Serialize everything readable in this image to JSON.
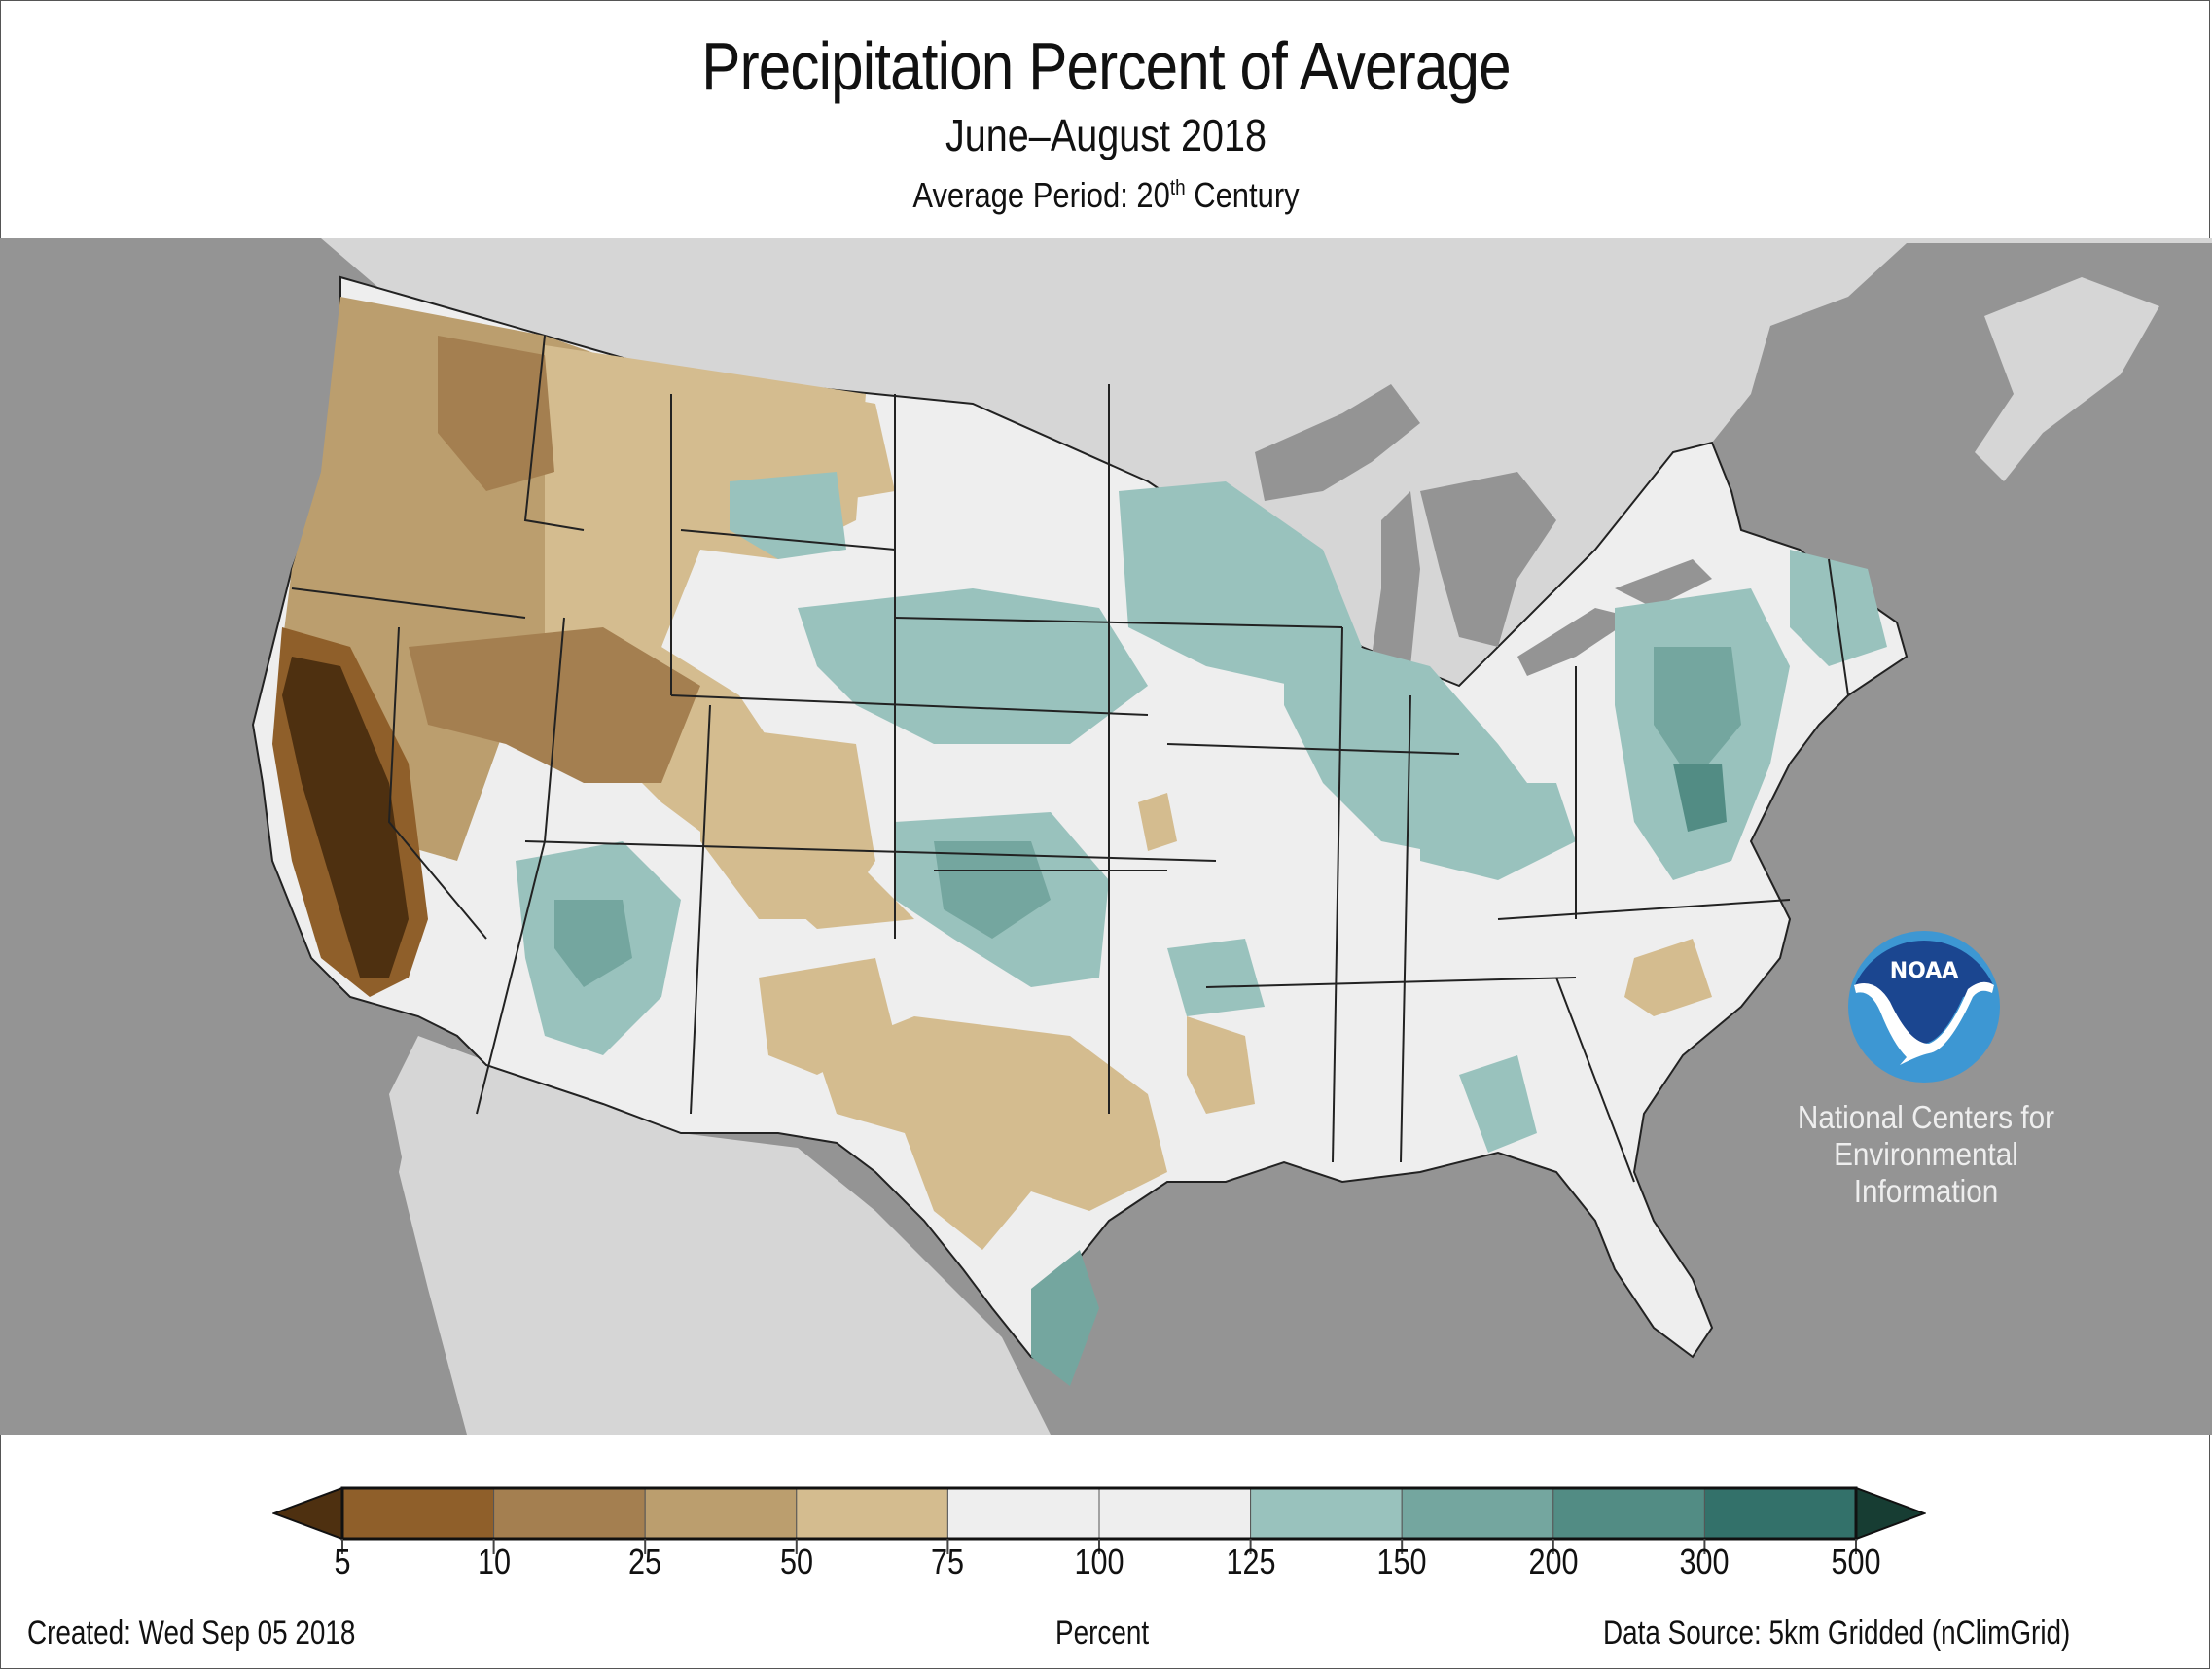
{
  "header": {
    "title": "Precipitation Percent of Average",
    "subtitle": "June–August 2018",
    "average_period_prefix": "Average Period: 20",
    "average_period_sup": "th",
    "average_period_suffix": " Century"
  },
  "colors": {
    "ocean": "#949494",
    "foreign_land": "#d6d6d6",
    "near_normal": "#eeeeee",
    "border": "#222222"
  },
  "chart_data": {
    "type": "heatmap",
    "title": "Precipitation Percent of Average",
    "subtitle": "June–August 2018",
    "region": "Contiguous United States",
    "colorbar": {
      "label": "Percent",
      "ticks": [
        "5",
        "10",
        "25",
        "50",
        "75",
        "100",
        "125",
        "150",
        "200",
        "300",
        "500"
      ],
      "bins": [
        {
          "range": "<5",
          "color": "#4e3010"
        },
        {
          "range": "5-10",
          "color": "#8f5f2a"
        },
        {
          "range": "10-25",
          "color": "#a47f50"
        },
        {
          "range": "25-50",
          "color": "#bb9e6e"
        },
        {
          "range": "50-75",
          "color": "#d4bc8f"
        },
        {
          "range": "75-100",
          "color": "#eeeeee"
        },
        {
          "range": "100-125",
          "color": "#eeeeee"
        },
        {
          "range": "125-150",
          "color": "#99c2bd"
        },
        {
          "range": "150-200",
          "color": "#74a69f"
        },
        {
          "range": "200-300",
          "color": "#528c84"
        },
        {
          "range": "300-500",
          "color": "#33716a"
        },
        {
          "range": ">500",
          "color": "#173d33"
        }
      ]
    }
  },
  "branding": {
    "logo_text": "NOAA",
    "org_line1": "National Centers for",
    "org_line2": "Environmental",
    "org_line3": "Information"
  },
  "footer": {
    "created": "Created: Wed Sep 05 2018",
    "units": "Percent",
    "source": "Data Source: 5km Gridded (nClimGrid)"
  }
}
